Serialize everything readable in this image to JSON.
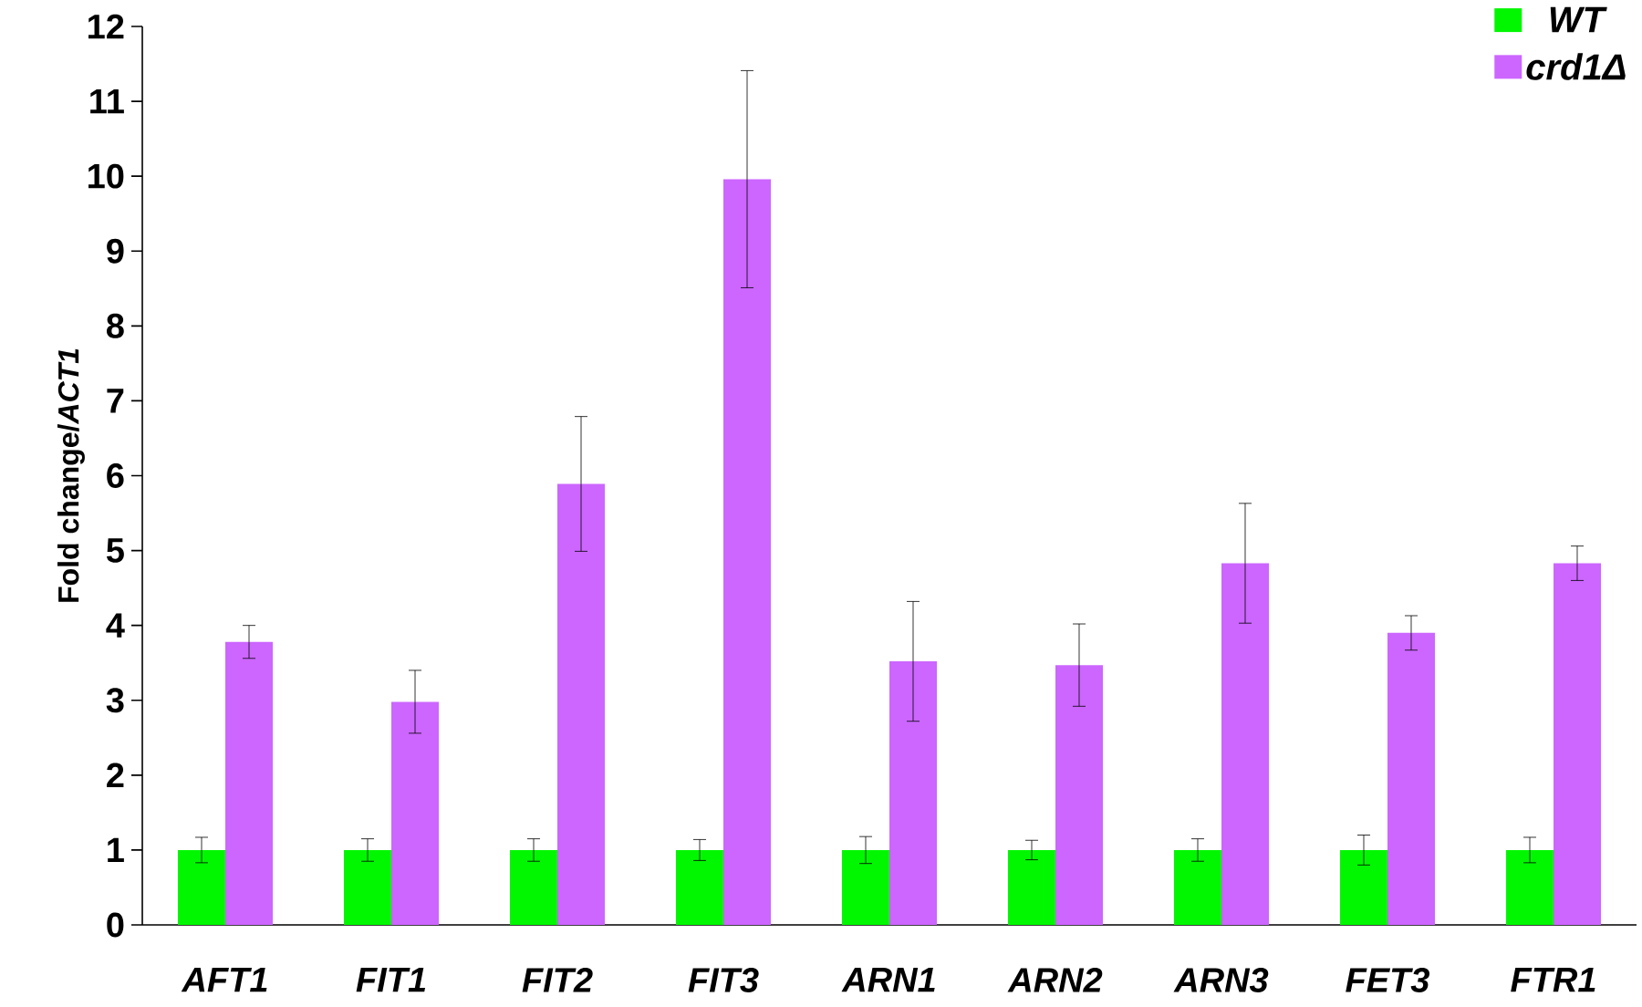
{
  "chart_data": {
    "type": "bar",
    "ylabel": "Fold change/*ACT1*",
    "categories": [
      "AFT1",
      "FIT1",
      "FIT2",
      "FIT3",
      "ARN1",
      "ARN2",
      "ARN3",
      "FET3",
      "FTR1"
    ],
    "series": [
      {
        "name": "WT",
        "color": "#00f700",
        "values": [
          1,
          1,
          1,
          1,
          1,
          1,
          1,
          1,
          1
        ],
        "errors": [
          0.17,
          0.15,
          0.15,
          0.14,
          0.18,
          0.13,
          0.15,
          0.2,
          0.17
        ]
      },
      {
        "name": "crd1Δ",
        "color": "#cc66ff",
        "values": [
          3.78,
          2.98,
          5.89,
          9.96,
          3.52,
          3.47,
          4.83,
          3.9,
          4.83
        ],
        "errors": [
          0.22,
          0.42,
          0.9,
          1.45,
          0.8,
          0.55,
          0.8,
          0.23,
          0.23
        ]
      }
    ],
    "ylim": [
      0,
      12
    ],
    "yticks": [
      0,
      1,
      2,
      3,
      4,
      5,
      6,
      7,
      8,
      9,
      10,
      11,
      12
    ],
    "legend": "top right"
  }
}
